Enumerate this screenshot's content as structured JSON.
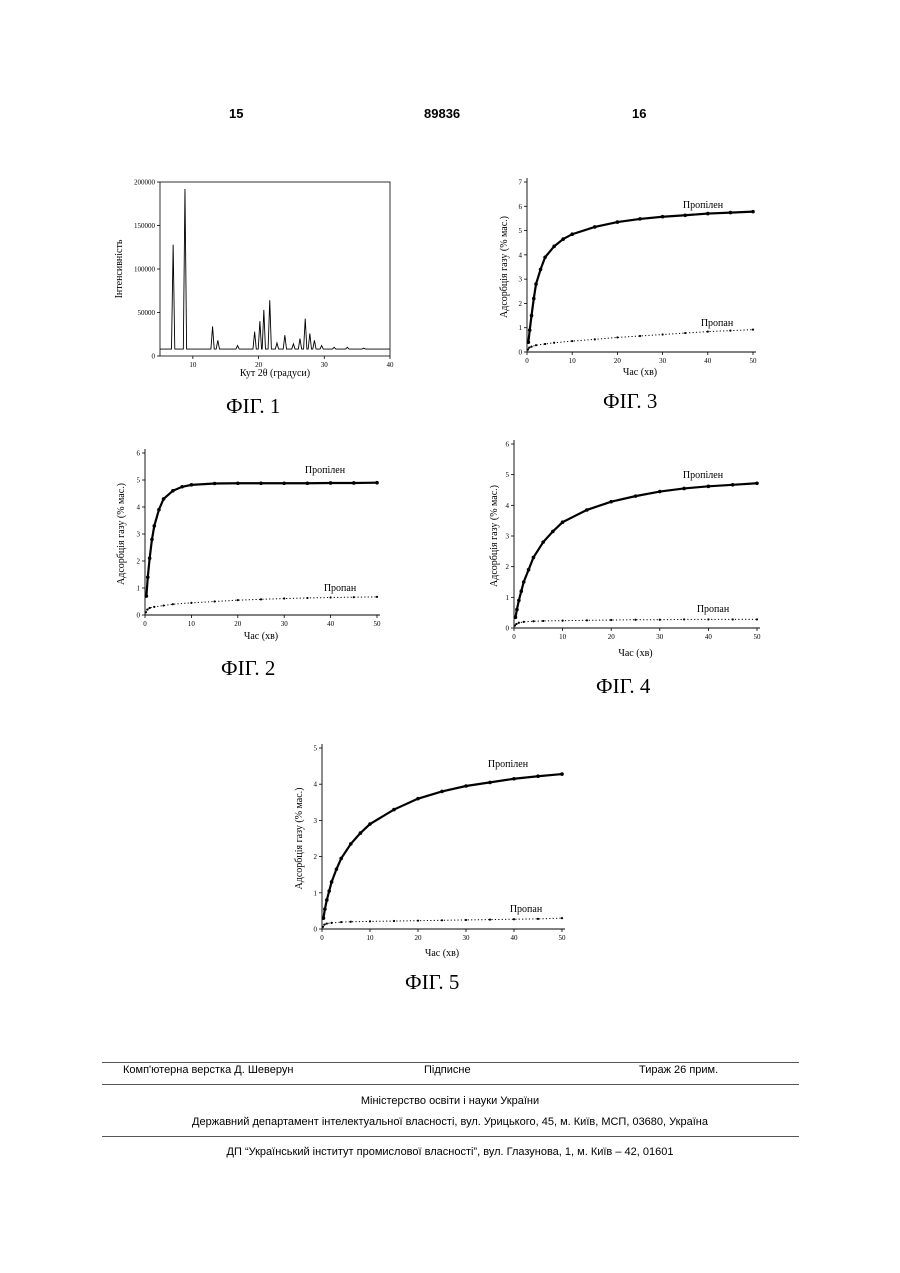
{
  "header": {
    "left_page": "15",
    "patent_number": "89836",
    "right_page": "16"
  },
  "figures": {
    "fig1": {
      "caption": "ФІГ. 1"
    },
    "fig2": {
      "caption": "ФІГ. 2"
    },
    "fig3": {
      "caption": "ФІГ. 3"
    },
    "fig4": {
      "caption": "ФІГ. 4"
    },
    "fig5": {
      "caption": "ФІГ. 5"
    }
  },
  "chart_data": [
    {
      "id": "fig1",
      "type": "line",
      "xlabel": "Кут 2θ (градуси)",
      "ylabel": "Інтенсивність",
      "xlim": [
        5,
        40
      ],
      "ylim": [
        0,
        200000
      ],
      "xticks": [
        10,
        20,
        30,
        40
      ],
      "yticks": [
        0,
        50000,
        100000,
        150000,
        200000
      ],
      "baseline": 8000,
      "peaks": [
        {
          "x": 7.0,
          "y": 128000
        },
        {
          "x": 8.8,
          "y": 192000
        },
        {
          "x": 13.0,
          "y": 34000
        },
        {
          "x": 13.8,
          "y": 18000
        },
        {
          "x": 16.8,
          "y": 12000
        },
        {
          "x": 19.4,
          "y": 28000
        },
        {
          "x": 20.2,
          "y": 40000
        },
        {
          "x": 20.8,
          "y": 53000
        },
        {
          "x": 21.7,
          "y": 64000
        },
        {
          "x": 22.8,
          "y": 15000
        },
        {
          "x": 24.0,
          "y": 24000
        },
        {
          "x": 25.3,
          "y": 14000
        },
        {
          "x": 26.3,
          "y": 20000
        },
        {
          "x": 27.1,
          "y": 43000
        },
        {
          "x": 27.8,
          "y": 26000
        },
        {
          "x": 28.5,
          "y": 18000
        },
        {
          "x": 29.6,
          "y": 12000
        },
        {
          "x": 31.5,
          "y": 10000
        },
        {
          "x": 33.5,
          "y": 10000
        },
        {
          "x": 36.0,
          "y": 9000
        },
        {
          "x": 38.5,
          "y": 8000
        }
      ]
    },
    {
      "id": "fig2",
      "type": "scatter",
      "xlabel": "Час (хв)",
      "ylabel": "Адсорбція газу (% мас.)",
      "xlim": [
        0,
        50
      ],
      "ylim": [
        0,
        6
      ],
      "xticks": [
        0,
        10,
        20,
        30,
        40,
        50
      ],
      "yticks": [
        0,
        1,
        2,
        3,
        4,
        5,
        6
      ],
      "series": [
        {
          "name": "Пропілен",
          "x": [
            0.3,
            0.6,
            1,
            1.5,
            2,
            3,
            4,
            6,
            8,
            10,
            15,
            20,
            25,
            30,
            35,
            40,
            45,
            50
          ],
          "values": [
            0.7,
            1.4,
            2.1,
            2.8,
            3.3,
            3.9,
            4.3,
            4.6,
            4.75,
            4.82,
            4.87,
            4.88,
            4.88,
            4.88,
            4.88,
            4.89,
            4.89,
            4.9
          ]
        },
        {
          "name": "Пропан",
          "x": [
            0.2,
            0.5,
            1,
            2,
            4,
            6,
            10,
            15,
            20,
            25,
            30,
            35,
            40,
            45,
            50
          ],
          "values": [
            0.1,
            0.2,
            0.26,
            0.3,
            0.35,
            0.4,
            0.45,
            0.5,
            0.55,
            0.58,
            0.61,
            0.63,
            0.65,
            0.66,
            0.67
          ]
        }
      ]
    },
    {
      "id": "fig3",
      "type": "scatter",
      "xlabel": "Час (хв)",
      "ylabel": "Адсорбція газу (% мас.)",
      "xlim": [
        0,
        50
      ],
      "ylim": [
        0,
        7
      ],
      "xticks": [
        0,
        10,
        20,
        30,
        40,
        50
      ],
      "yticks": [
        0,
        1,
        2,
        3,
        4,
        5,
        6,
        7
      ],
      "series": [
        {
          "name": "Пропілен",
          "x": [
            0.3,
            0.6,
            1,
            1.5,
            2,
            3,
            4,
            6,
            8,
            10,
            15,
            20,
            25,
            30,
            35,
            40,
            45,
            50
          ],
          "values": [
            0.4,
            0.9,
            1.5,
            2.2,
            2.8,
            3.4,
            3.9,
            4.35,
            4.65,
            4.85,
            5.15,
            5.35,
            5.48,
            5.57,
            5.63,
            5.7,
            5.74,
            5.78
          ]
        },
        {
          "name": "Пропан",
          "x": [
            0.2,
            0.5,
            1,
            2,
            4,
            6,
            10,
            15,
            20,
            25,
            30,
            35,
            40,
            45,
            50
          ],
          "values": [
            0.1,
            0.18,
            0.22,
            0.28,
            0.33,
            0.38,
            0.45,
            0.52,
            0.6,
            0.66,
            0.72,
            0.78,
            0.84,
            0.88,
            0.92
          ]
        }
      ]
    },
    {
      "id": "fig4",
      "type": "scatter",
      "xlabel": "Час (хв)",
      "ylabel": "Адсорбція газу (% мас.)",
      "xlim": [
        0,
        50
      ],
      "ylim": [
        0,
        6
      ],
      "xticks": [
        0,
        10,
        20,
        30,
        40,
        50
      ],
      "yticks": [
        0,
        1,
        2,
        3,
        4,
        5,
        6
      ],
      "series": [
        {
          "name": "Пропілен",
          "x": [
            0.3,
            0.6,
            1,
            1.5,
            2,
            3,
            4,
            6,
            8,
            10,
            15,
            20,
            25,
            30,
            35,
            40,
            45,
            50
          ],
          "values": [
            0.35,
            0.6,
            0.9,
            1.2,
            1.5,
            1.9,
            2.3,
            2.8,
            3.15,
            3.45,
            3.85,
            4.12,
            4.3,
            4.45,
            4.55,
            4.62,
            4.67,
            4.72
          ]
        },
        {
          "name": "Пропан",
          "x": [
            0.2,
            0.5,
            1,
            2,
            4,
            6,
            10,
            15,
            20,
            25,
            30,
            35,
            40,
            45,
            50
          ],
          "values": [
            0.08,
            0.13,
            0.17,
            0.2,
            0.22,
            0.23,
            0.24,
            0.25,
            0.26,
            0.27,
            0.27,
            0.28,
            0.28,
            0.28,
            0.28
          ]
        }
      ]
    },
    {
      "id": "fig5",
      "type": "scatter",
      "xlabel": "Час (хв)",
      "ylabel": "Адсорбція газу (% мас.)",
      "xlim": [
        0,
        50
      ],
      "ylim": [
        0,
        5
      ],
      "xticks": [
        0,
        10,
        20,
        30,
        40,
        50
      ],
      "yticks": [
        0,
        1,
        2,
        3,
        4,
        5
      ],
      "series": [
        {
          "name": "Пропілен",
          "x": [
            0.3,
            0.6,
            1,
            1.5,
            2,
            3,
            4,
            6,
            8,
            10,
            15,
            20,
            25,
            30,
            35,
            40,
            45,
            50
          ],
          "values": [
            0.3,
            0.55,
            0.8,
            1.05,
            1.3,
            1.65,
            1.95,
            2.35,
            2.65,
            2.9,
            3.3,
            3.6,
            3.8,
            3.95,
            4.05,
            4.15,
            4.22,
            4.28
          ]
        },
        {
          "name": "Пропан",
          "x": [
            0.2,
            0.5,
            1,
            2,
            4,
            6,
            10,
            15,
            20,
            25,
            30,
            35,
            40,
            45,
            50
          ],
          "values": [
            0.06,
            0.12,
            0.15,
            0.17,
            0.19,
            0.2,
            0.21,
            0.22,
            0.23,
            0.24,
            0.25,
            0.26,
            0.27,
            0.28,
            0.3
          ]
        }
      ]
    }
  ],
  "footer": {
    "layout": "Комп'ютерна верстка Д. Шеверун",
    "signed": "Підписне",
    "circulation": "Тираж 26 прим.",
    "ministry": "Міністерство освіти і науки України",
    "department": "Державний департамент інтелектуальної власності, вул. Урицького, 45, м. Київ, МСП, 03680, Україна",
    "institute": "ДП “Український інститут промислової власності”, вул. Глазунова, 1, м. Київ – 42, 01601"
  }
}
